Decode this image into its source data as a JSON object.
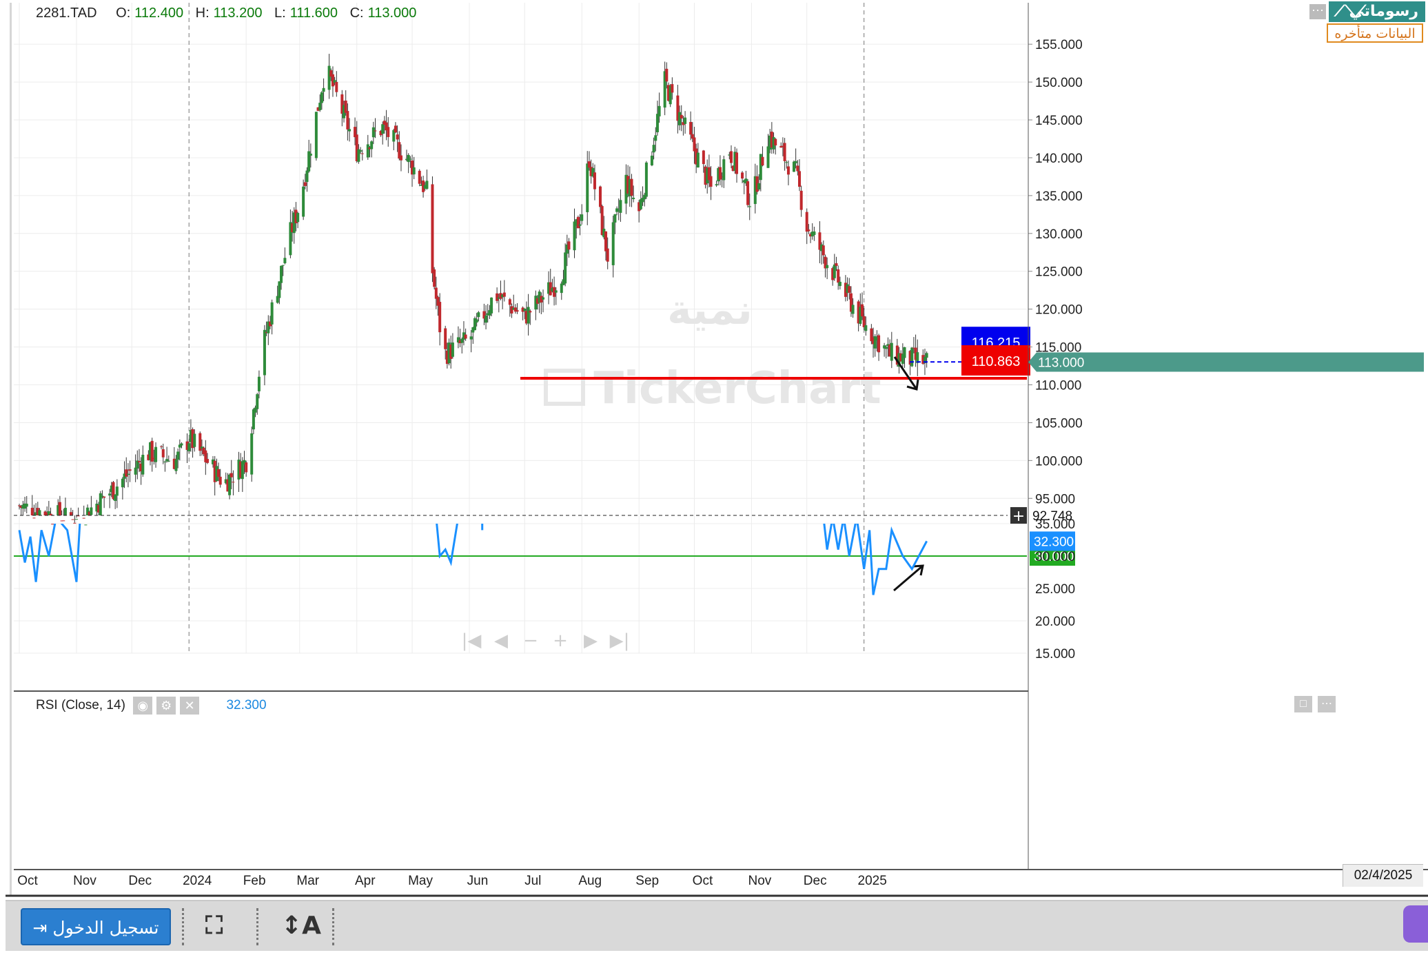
{
  "header": {
    "symbol": "2281.TAD",
    "open_label": "O:",
    "open": "112.400",
    "high_label": "H:",
    "high": "113.200",
    "low_label": "L:",
    "low": "111.600",
    "close_label": "C:",
    "close": "113.000"
  },
  "brand": {
    "name": "رسوماتي",
    "delayed_notice": "البيانات متأخره",
    "menu_icon": "ellipsis-icon"
  },
  "watermark": {
    "arabic": "نمية",
    "latin": "TickerChart"
  },
  "rsi": {
    "label": "RSI",
    "params": "(Close, 14)",
    "value": "32.300",
    "threshold": "30.000",
    "ylim": [
      15,
      35
    ],
    "ticks": [
      "35.000",
      "30.000",
      "25.000",
      "20.000",
      "15.000"
    ]
  },
  "price_axis": {
    "ticks": [
      "155.000",
      "150.000",
      "145.000",
      "140.000",
      "135.000",
      "130.000",
      "125.000",
      "120.000",
      "115.000",
      "110.000",
      "105.000",
      "100.000",
      "95.000"
    ],
    "ylim": [
      92.748,
      157.2
    ]
  },
  "crosshair": {
    "value": "92.748"
  },
  "last_price": {
    "value": "113.000",
    "color": "#4c9a8a"
  },
  "levels": {
    "upper": {
      "value": "116.215",
      "color": "#0000ee"
    },
    "lower": {
      "value": "110.863",
      "color": "#ee0000"
    }
  },
  "time_axis": {
    "labels": [
      "Oct",
      "Nov",
      "Dec",
      "2024",
      "Feb",
      "Mar",
      "Apr",
      "May",
      "Jun",
      "Jul",
      "Aug",
      "Sep",
      "Oct",
      "Nov",
      "Dec",
      "2025"
    ],
    "current_date": "02/4/2025"
  },
  "colors": {
    "up": "#2e8b3a",
    "down": "#c0282d",
    "rsi": "#1a90ff",
    "rsi_level": "#22aa22"
  },
  "bottom_bar": {
    "login_label": "تسجيل الدخول",
    "fullscreen_icon": "fullscreen-icon",
    "text_tool_label": "↕A"
  },
  "chart_data": {
    "type": "candlestick",
    "symbol": "2281.TAD",
    "x_range": [
      "2023-10",
      "2025-02-04"
    ],
    "ylim": [
      92.748,
      157.2
    ],
    "price_anchors": [
      {
        "date": "2023-10",
        "close": 94
      },
      {
        "date": "2023-11",
        "close": 92
      },
      {
        "date": "2023-11-20",
        "close": 96
      },
      {
        "date": "2023-12-10",
        "close": 101
      },
      {
        "date": "2023-12-25",
        "close": 100
      },
      {
        "date": "2024-01",
        "close": 103
      },
      {
        "date": "2024-01-20",
        "close": 97
      },
      {
        "date": "2024-02",
        "close": 100
      },
      {
        "date": "2024-02-10",
        "close": 115
      },
      {
        "date": "2024-02-25",
        "close": 130
      },
      {
        "date": "2024-03",
        "close": 134
      },
      {
        "date": "2024-03-15",
        "close": 152
      },
      {
        "date": "2024-04",
        "close": 141
      },
      {
        "date": "2024-04-15",
        "close": 144
      },
      {
        "date": "2024-05",
        "close": 139
      },
      {
        "date": "2024-05-10",
        "close": 135
      },
      {
        "date": "2024-05-12",
        "close": 125
      },
      {
        "date": "2024-05-18",
        "close": 114
      },
      {
        "date": "2024-06",
        "close": 116
      },
      {
        "date": "2024-06-15",
        "close": 122
      },
      {
        "date": "2024-07",
        "close": 119
      },
      {
        "date": "2024-07-20",
        "close": 124
      },
      {
        "date": "2024-08",
        "close": 133
      },
      {
        "date": "2024-08-05",
        "close": 140
      },
      {
        "date": "2024-08-15",
        "close": 127
      },
      {
        "date": "2024-08-25",
        "close": 137
      },
      {
        "date": "2024-09",
        "close": 133
      },
      {
        "date": "2024-09-15",
        "close": 150
      },
      {
        "date": "2024-10",
        "close": 141
      },
      {
        "date": "2024-10-10",
        "close": 136
      },
      {
        "date": "2024-10-20",
        "close": 141
      },
      {
        "date": "2024-11",
        "close": 134
      },
      {
        "date": "2024-11-10",
        "close": 143
      },
      {
        "date": "2024-11-25",
        "close": 138
      },
      {
        "date": "2024-12",
        "close": 131
      },
      {
        "date": "2024-12-15",
        "close": 125
      },
      {
        "date": "2025-01",
        "close": 118
      },
      {
        "date": "2025-01-15",
        "close": 114
      },
      {
        "date": "2025-02-04",
        "close": 113
      }
    ],
    "rsi_series": [
      {
        "date": "2023-10",
        "rsi": 30
      },
      {
        "date": "2023-10-15",
        "rsi": 27
      },
      {
        "date": "2023-11",
        "rsi": 29
      },
      {
        "date": "2024-05-18",
        "rsi": 31
      },
      {
        "date": "2024-06",
        "rsi": 34
      },
      {
        "date": "2024-12-10",
        "rsi": 32
      },
      {
        "date": "2024-12-25",
        "rsi": 28
      },
      {
        "date": "2025-01",
        "rsi": 24
      },
      {
        "date": "2025-01-20",
        "rsi": 26
      },
      {
        "date": "2025-02-04",
        "rsi": 32.3
      }
    ]
  }
}
